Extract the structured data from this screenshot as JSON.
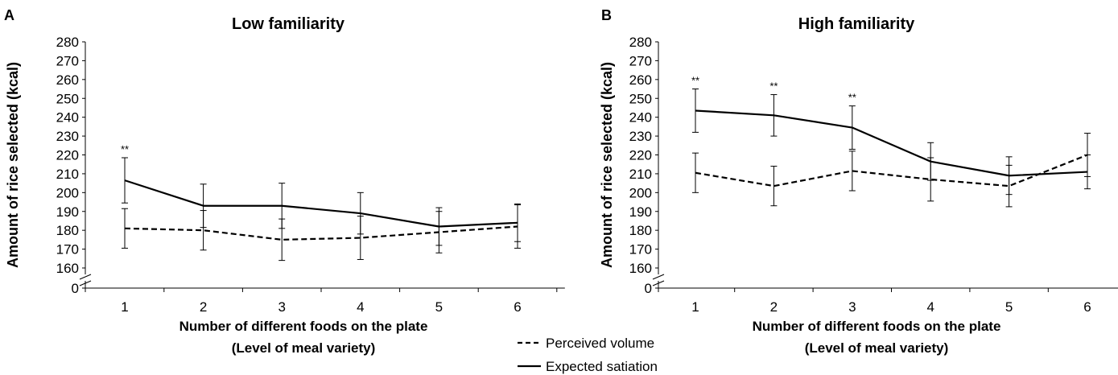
{
  "chart_data": [
    {
      "type": "line",
      "panel": "A",
      "title": "Low familiarity",
      "xlabel": "Number of different foods on the plate",
      "xlabel2": "(Level of meal variety)",
      "ylabel": "Amount of rice selected (kcal)",
      "categories": [
        "1",
        "2",
        "3",
        "4",
        "5",
        "6"
      ],
      "yticks": [
        "0",
        "160",
        "170",
        "180",
        "190",
        "200",
        "210",
        "220",
        "230",
        "240",
        "250",
        "260",
        "270",
        "280"
      ],
      "ylim": [
        160,
        280
      ],
      "axis_break": true,
      "series": [
        {
          "name": "Perceived volume",
          "style": "dashed",
          "values": [
            181,
            180,
            175,
            176,
            179,
            182
          ],
          "error": [
            10.5,
            10.5,
            11,
            11.5,
            11,
            11.5
          ]
        },
        {
          "name": "Expected satiation",
          "style": "solid",
          "values": [
            206.5,
            193,
            193,
            189,
            182,
            184
          ],
          "error": [
            12,
            11.5,
            12,
            11,
            10,
            10
          ]
        }
      ],
      "annotations": [
        {
          "x": "1",
          "text": "**"
        }
      ]
    },
    {
      "type": "line",
      "panel": "B",
      "title": "High familiarity",
      "xlabel": "Number of different foods on the plate",
      "xlabel2": "(Level of meal variety)",
      "ylabel": "Amount of rice selected (kcal)",
      "categories": [
        "1",
        "2",
        "3",
        "4",
        "5",
        "6"
      ],
      "yticks": [
        "0",
        "160",
        "170",
        "180",
        "190",
        "200",
        "210",
        "220",
        "230",
        "240",
        "250",
        "260",
        "270",
        "280"
      ],
      "ylim": [
        160,
        280
      ],
      "axis_break": true,
      "series": [
        {
          "name": "Perceived volume",
          "style": "dashed",
          "values": [
            210.5,
            203.5,
            211.5,
            207,
            203.5,
            220
          ],
          "error": [
            10.5,
            10.5,
            10.5,
            11.5,
            11,
            11.5
          ]
        },
        {
          "name": "Expected satiation",
          "style": "solid",
          "values": [
            243.5,
            241,
            234.5,
            216.5,
            209,
            211
          ],
          "error": [
            11.5,
            11,
            11.5,
            10,
            10,
            9
          ]
        }
      ],
      "annotations": [
        {
          "x": "1",
          "text": "**"
        },
        {
          "x": "2",
          "text": "**"
        },
        {
          "x": "3",
          "text": "**"
        }
      ]
    }
  ],
  "legend": [
    {
      "label": "Perceived volume",
      "style": "dashed"
    },
    {
      "label": "Expected satiation",
      "style": "solid"
    }
  ],
  "legend_position": "bottom-center"
}
